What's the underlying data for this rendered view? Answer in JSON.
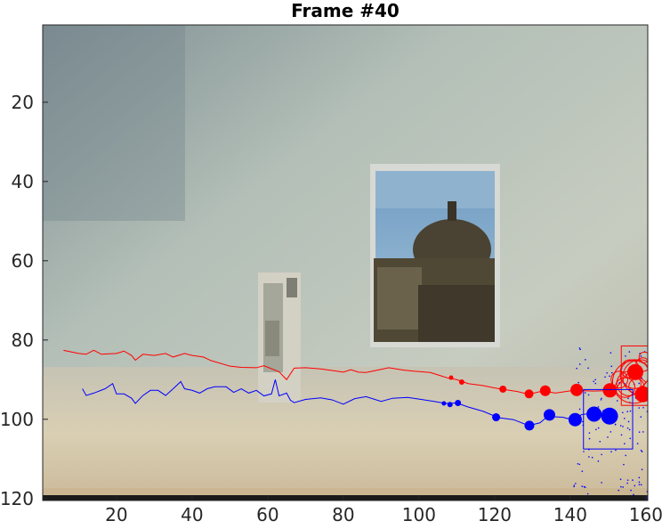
{
  "chart_data": {
    "type": "scatter",
    "title": "Frame #40",
    "xlabel": "",
    "ylabel": "",
    "xlim": [
      0.5,
      160.5
    ],
    "ylim": [
      0.5,
      120.5
    ],
    "y_reversed": true,
    "grid": false,
    "xticks": [
      20,
      40,
      60,
      80,
      100,
      120,
      140,
      160
    ],
    "yticks": [
      20,
      40,
      60,
      80,
      100,
      120
    ],
    "background": "video frame: pale grey-green wall, framed poster of a domed building, a tall package, a beige table surface",
    "series": [
      {
        "color": "#ff0000",
        "track_line": [
          [
            6,
            82.6
          ],
          [
            10,
            83.4
          ],
          [
            12,
            83.6
          ],
          [
            14,
            82.6
          ],
          [
            16,
            83.6
          ],
          [
            20,
            83.4
          ],
          [
            22,
            82.8
          ],
          [
            24,
            83.9
          ],
          [
            25,
            85.1
          ],
          [
            27,
            83.6
          ],
          [
            30,
            83.9
          ],
          [
            33,
            83.4
          ],
          [
            35,
            84.3
          ],
          [
            38,
            83.4
          ],
          [
            40,
            83.9
          ],
          [
            43,
            84.3
          ],
          [
            45,
            85.2
          ],
          [
            50,
            86.6
          ],
          [
            53,
            86.9
          ],
          [
            57,
            87.0
          ],
          [
            59,
            86.5
          ],
          [
            63,
            88.0
          ],
          [
            65,
            90.0
          ],
          [
            67,
            87.1
          ],
          [
            70,
            87.0
          ],
          [
            74,
            87.3
          ],
          [
            77,
            87.7
          ],
          [
            80,
            88.1
          ],
          [
            82,
            87.5
          ],
          [
            84,
            88.1
          ],
          [
            86,
            88.2
          ],
          [
            88,
            87.8
          ],
          [
            90,
            87.4
          ],
          [
            92,
            87.0
          ],
          [
            96,
            87.6
          ],
          [
            99,
            87.9
          ],
          [
            103,
            88.2
          ],
          [
            106,
            89.1
          ],
          [
            108,
            89.7
          ],
          [
            110,
            90.0
          ],
          [
            113,
            91.0
          ],
          [
            117,
            91.5
          ],
          [
            120,
            92.1
          ],
          [
            122,
            92.4
          ],
          [
            126,
            93.0
          ],
          [
            129,
            93.7
          ],
          [
            133,
            92.8
          ],
          [
            136,
            93.4
          ],
          [
            141,
            92.7
          ],
          [
            146,
            92.9
          ],
          [
            149,
            92.8
          ],
          [
            152,
            92.3
          ],
          [
            155,
            88.6
          ],
          [
            157,
            88.4
          ],
          [
            160,
            90.6
          ],
          [
            158,
            93.8
          ]
        ],
        "points": [
          {
            "x": 108.5,
            "y": 89.5,
            "size": 2.5
          },
          {
            "x": 111.3,
            "y": 90.6,
            "size": 3
          },
          {
            "x": 122.2,
            "y": 92.4,
            "size": 4
          },
          {
            "x": 129.1,
            "y": 93.6,
            "size": 5
          },
          {
            "x": 133.4,
            "y": 92.8,
            "size": 6
          },
          {
            "x": 141.7,
            "y": 92.6,
            "size": 7
          },
          {
            "x": 150.5,
            "y": 92.7,
            "size": 8
          },
          {
            "x": 157.2,
            "y": 88.1,
            "size": 9
          },
          {
            "x": 159.2,
            "y": 93.7,
            "size": 9
          }
        ],
        "box": {
          "x0": 153.5,
          "x1": 161.5,
          "y0": 81.5,
          "y1": 96.5
        },
        "hypothesis_circles": [
          [
            155.5,
            91.0,
            3.2
          ],
          [
            157.0,
            88.6,
            3.8
          ],
          [
            158.5,
            89.4,
            4.6
          ],
          [
            156.8,
            90.6,
            5.6
          ],
          [
            154.5,
            92.0,
            2.6
          ],
          [
            159.2,
            86.2,
            1.8
          ],
          [
            153.0,
            90.0,
            2.2
          ],
          [
            155.8,
            87.3,
            2.4
          ],
          [
            157.5,
            91.7,
            2.0
          ],
          [
            159.6,
            84.4,
            1.4
          ]
        ]
      },
      {
        "color": "#0000ff",
        "track_line": [
          [
            11,
            92.3
          ],
          [
            12,
            94.0
          ],
          [
            14,
            93.4
          ],
          [
            17,
            92.3
          ],
          [
            19,
            91.0
          ],
          [
            20,
            93.6
          ],
          [
            22,
            93.6
          ],
          [
            24,
            94.7
          ],
          [
            25,
            96.0
          ],
          [
            27,
            94.0
          ],
          [
            29,
            92.7
          ],
          [
            31,
            92.7
          ],
          [
            33,
            94.0
          ],
          [
            35,
            92.3
          ],
          [
            37,
            90.5
          ],
          [
            38,
            92.3
          ],
          [
            40,
            92.7
          ],
          [
            42,
            93.4
          ],
          [
            44,
            92.3
          ],
          [
            46,
            91.8
          ],
          [
            49,
            91.8
          ],
          [
            51,
            93.2
          ],
          [
            53,
            92.3
          ],
          [
            55,
            93.4
          ],
          [
            57,
            92.7
          ],
          [
            59,
            94.1
          ],
          [
            61,
            93.6
          ],
          [
            62,
            90.0
          ],
          [
            63,
            94.1
          ],
          [
            65,
            93.4
          ],
          [
            66,
            95.2
          ],
          [
            67,
            95.8
          ],
          [
            70,
            95.0
          ],
          [
            74,
            94.6
          ],
          [
            77,
            95.1
          ],
          [
            80,
            96.2
          ],
          [
            83,
            94.8
          ],
          [
            86,
            94.3
          ],
          [
            90,
            95.5
          ],
          [
            93,
            94.7
          ],
          [
            97,
            94.5
          ],
          [
            100,
            94.9
          ],
          [
            104,
            95.5
          ],
          [
            107,
            96.0
          ],
          [
            110,
            95.9
          ],
          [
            113,
            96.9
          ],
          [
            117,
            98.0
          ],
          [
            121,
            99.6
          ],
          [
            125,
            100.1
          ],
          [
            129,
            101.6
          ],
          [
            132,
            100.9
          ],
          [
            134,
            99.3
          ],
          [
            138,
            99.5
          ],
          [
            141,
            100.2
          ],
          [
            143,
            98.8
          ],
          [
            146,
            98.5
          ],
          [
            150,
            98.8
          ]
        ],
        "points": [
          {
            "x": 106.6,
            "y": 96.0,
            "size": 2.5
          },
          {
            "x": 108.2,
            "y": 96.3,
            "size": 3
          },
          {
            "x": 110.3,
            "y": 95.9,
            "size": 3.5
          },
          {
            "x": 120.4,
            "y": 99.5,
            "size": 4.5
          },
          {
            "x": 129.2,
            "y": 101.6,
            "size": 5.5
          },
          {
            "x": 134.5,
            "y": 98.9,
            "size": 6.5
          },
          {
            "x": 141.3,
            "y": 100.1,
            "size": 7.5
          },
          {
            "x": 146.3,
            "y": 98.7,
            "size": 8.5
          },
          {
            "x": 150.4,
            "y": 99.2,
            "size": 9.5
          }
        ],
        "box": {
          "x0": 143.5,
          "x1": 156.5,
          "y0": 92.5,
          "y1": 107.5
        }
      }
    ]
  }
}
